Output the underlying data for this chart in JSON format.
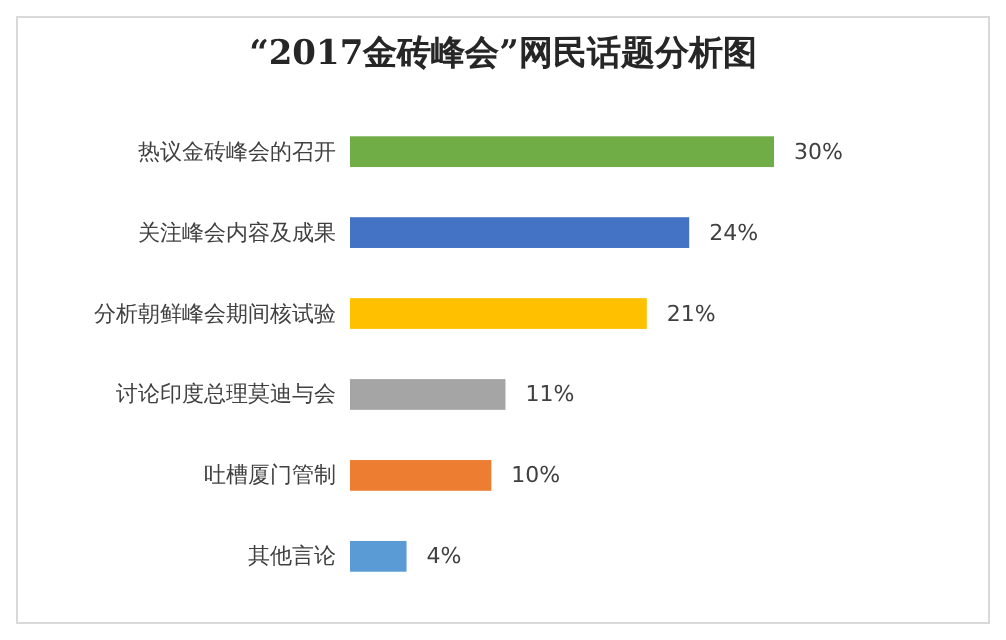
{
  "chart_data": {
    "type": "bar",
    "orientation": "horizontal",
    "title": "“2017金砖峰会”网民话题分析图",
    "categories": [
      "热议金砖峰会的召开",
      "关注峰会内容及成果",
      "分析朝鲜峰会期间核试验",
      "讨论印度总理莫迪与会",
      "吐槽厦门管制",
      "其他言论"
    ],
    "values": [
      30,
      24,
      21,
      11,
      10,
      4
    ],
    "colors": [
      "#70ad47",
      "#4472c4",
      "#ffc000",
      "#a5a5a5",
      "#ed7d31",
      "#5b9bd5"
    ],
    "value_labels": [
      "30%",
      "24%",
      "21%",
      "11%",
      "10%",
      "4%"
    ]
  }
}
